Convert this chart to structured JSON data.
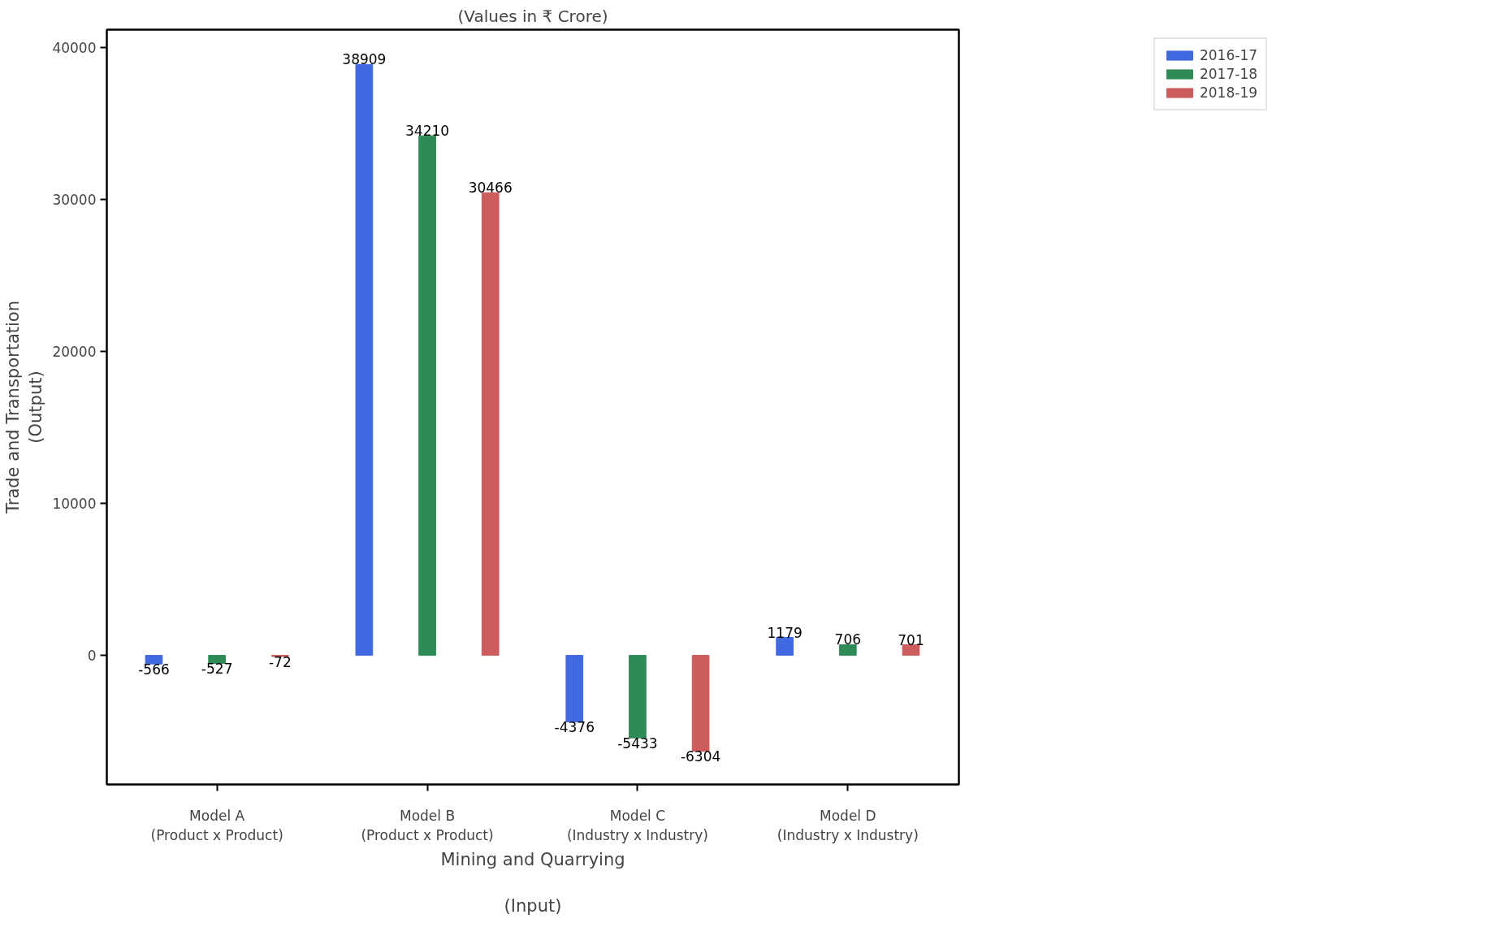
{
  "chart_data": {
    "type": "bar",
    "title": "(Values in ₹ Crore)",
    "xlabel": "Mining and Quarrying\n\n(Input)",
    "ylabel": "Trade and Transportation\n(Output)",
    "categories": [
      "Model A\n(Product x Product)",
      "Model B\n(Product x Product)",
      "Model C\n(Industry x Industry)",
      "Model D\n(Industry x Industry)"
    ],
    "series": [
      {
        "name": "2016-17",
        "color": "#4169e1",
        "values": [
          -566,
          38909,
          -4376,
          1179
        ]
      },
      {
        "name": "2017-18",
        "color": "#2e8b57",
        "values": [
          -527,
          34210,
          -5433,
          706
        ]
      },
      {
        "name": "2018-19",
        "color": "#cd5c5c",
        "values": [
          -72,
          30466,
          -6304,
          701
        ]
      }
    ],
    "ylim": [
      -8500,
      41200
    ],
    "yticks": [
      0,
      10000,
      20000,
      30000,
      40000
    ],
    "grid": false,
    "legend": "top right",
    "data_labels": true
  }
}
